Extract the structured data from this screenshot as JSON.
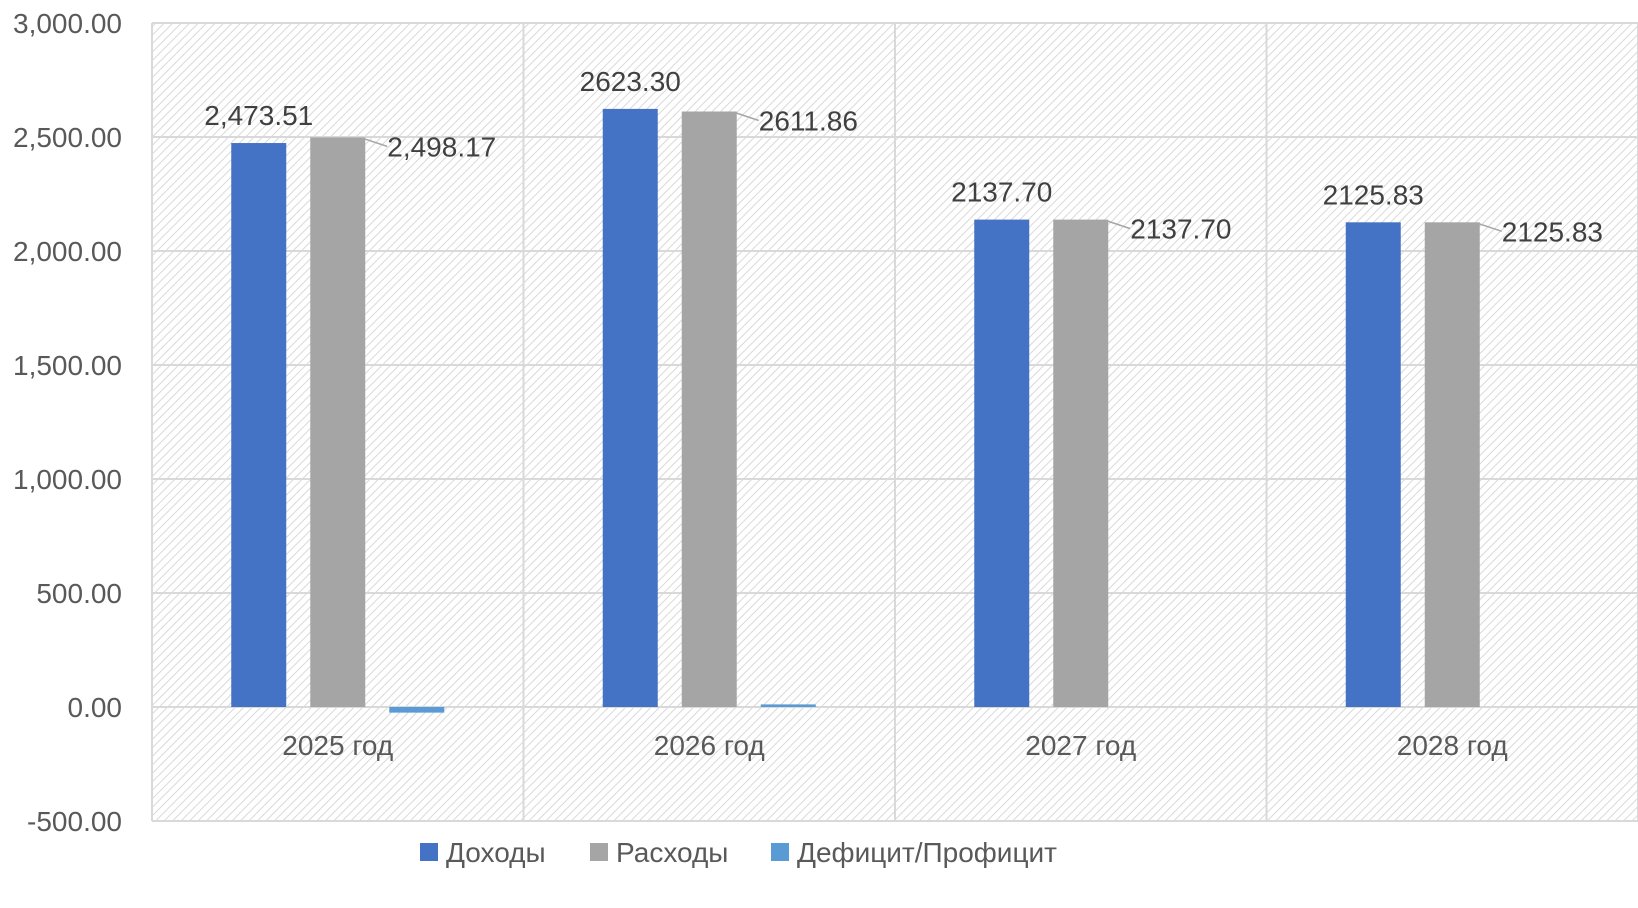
{
  "chart_data": {
    "type": "bar",
    "categories": [
      "2025 год",
      "2026 год",
      "2027 год",
      "2028 год"
    ],
    "series": [
      {
        "name": "Доходы",
        "color": "#4472C4",
        "values": [
          2473.51,
          2623.3,
          2137.7,
          2125.83
        ],
        "labels": [
          "2,473.51",
          "2623.30",
          "2137.70",
          "2125.83"
        ]
      },
      {
        "name": "Расходы",
        "color": "#A5A5A5",
        "values": [
          2498.17,
          2611.86,
          2137.7,
          2125.83
        ],
        "labels": [
          "2,498.17",
          "2611.86",
          "2137.70",
          "2125.83"
        ]
      },
      {
        "name": "Дефицит/Профицит",
        "color": "#5B9BD5",
        "values": [
          -24.66,
          11.44,
          0,
          0
        ],
        "labels": []
      }
    ],
    "ylim": [
      -500,
      3000
    ],
    "yticks": [
      "3,000.00",
      "2,500.00",
      "2,000.00",
      "1,500.00",
      "1,000.00",
      "500.00",
      "0.00",
      "-500.00"
    ],
    "ytick_values": [
      3000,
      2500,
      2000,
      1500,
      1000,
      500,
      0,
      -500
    ],
    "grid": true,
    "legend_position": "bottom",
    "title": "",
    "xlabel": "",
    "ylabel": ""
  }
}
